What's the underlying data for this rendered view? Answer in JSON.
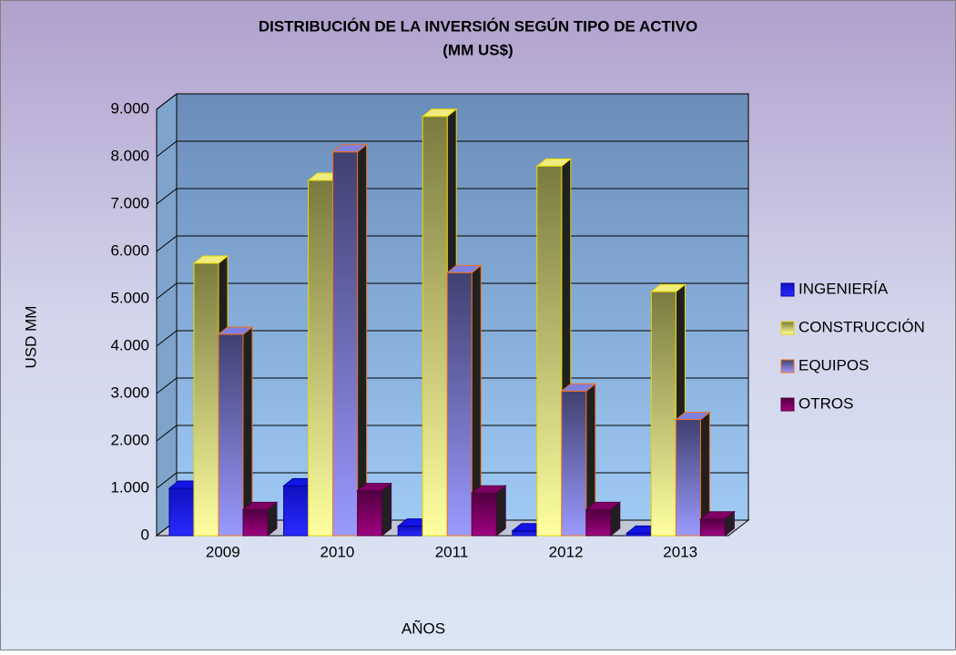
{
  "chart_data": {
    "type": "bar3d",
    "title": "DISTRIBUCIÓN DE LA INVERSIÓN SEGÚN TIPO DE ACTIVO",
    "subtitle": "(MM US$)",
    "y_label": "USD MM",
    "x_label": "AÑOS",
    "categories": [
      "2009",
      "2010",
      "2011",
      "2012",
      "2013"
    ],
    "series": [
      {
        "name": "INGENIERÍA",
        "color": "#1414e6",
        "values": [
          1000,
          1050,
          200,
          100,
          50
        ]
      },
      {
        "name": "CONSTRUCCIÓN",
        "color": "#f0ec80",
        "values": [
          5750,
          7500,
          8850,
          7800,
          5150
        ]
      },
      {
        "name": "EQUIPOS",
        "color": "#8080e0",
        "values": [
          4250,
          8100,
          5550,
          3050,
          2450
        ]
      },
      {
        "name": "OTROS",
        "color": "#800064",
        "values": [
          550,
          950,
          900,
          550,
          350
        ]
      }
    ],
    "ylim": [
      0,
      9000
    ],
    "yticks": [
      0,
      {
        "value": 1000,
        "label": "1.000"
      },
      {
        "value": 2000,
        "label": "2.000"
      },
      {
        "value": 3000,
        "label": "3.000"
      },
      {
        "value": 4000,
        "label": "4.000"
      },
      {
        "value": 5000,
        "label": "5.000"
      },
      {
        "value": 6000,
        "label": "6.000"
      },
      {
        "value": 7000,
        "label": "7.000"
      },
      {
        "value": 8000,
        "label": "8.000"
      },
      {
        "value": 9000,
        "label": "9.000"
      }
    ],
    "grid": true,
    "legend": "right"
  }
}
